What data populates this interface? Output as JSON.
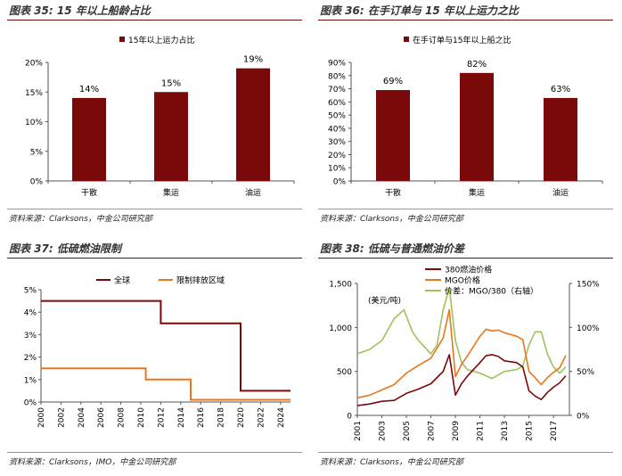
{
  "colors": {
    "bar": "#7a0a0a",
    "accent": "#7a0a0a",
    "line_dark": "#7a0a0a",
    "line_orange": "#e8771e",
    "line_green": "#9dc35b"
  },
  "chart_data": [
    {
      "type": "bar",
      "title": "图表 35: 15 年以上船龄占比",
      "legend": [
        "15年以上运力占比"
      ],
      "categories": [
        "干散",
        "集运",
        "油运"
      ],
      "values": [
        14,
        15,
        19
      ],
      "data_labels": [
        "14%",
        "15%",
        "19%"
      ],
      "yticks": [
        "0%",
        "5%",
        "10%",
        "15%",
        "20%"
      ],
      "ylim": [
        0,
        20
      ],
      "source": "资料来源：Clarksons，中金公司研究部"
    },
    {
      "type": "bar",
      "title": "图表 36: 在手订单与 15 年以上运力之比",
      "legend": [
        "在手订单与15年以上船之比"
      ],
      "categories": [
        "干散",
        "集运",
        "油运"
      ],
      "values": [
        69,
        82,
        63
      ],
      "data_labels": [
        "69%",
        "82%",
        "63%"
      ],
      "yticks": [
        "0%",
        "10%",
        "20%",
        "30%",
        "40%",
        "50%",
        "60%",
        "70%",
        "80%",
        "90%"
      ],
      "ylim": [
        0,
        90
      ],
      "source": "资料来源：Clarksons，中金公司研究部"
    },
    {
      "type": "line",
      "title": "图表 37: 低硫燃油限制",
      "legend": [
        "全球",
        "限制排放区域"
      ],
      "series": [
        {
          "name": "全球",
          "points": [
            [
              2000,
              4.5
            ],
            [
              2012,
              4.5
            ],
            [
              2012,
              3.5
            ],
            [
              2020,
              3.5
            ],
            [
              2020,
              0.5
            ],
            [
              2025,
              0.5
            ]
          ]
        },
        {
          "name": "限制排放区域",
          "points": [
            [
              2000,
              1.5
            ],
            [
              2010.5,
              1.5
            ],
            [
              2010.5,
              1.0
            ],
            [
              2015,
              1.0
            ],
            [
              2015,
              0.1
            ],
            [
              2025,
              0.1
            ]
          ]
        }
      ],
      "xticks": [
        "2000",
        "2002",
        "2004",
        "2006",
        "2008",
        "2010",
        "2012",
        "2014",
        "2016",
        "2018",
        "2020",
        "2022",
        "2024"
      ],
      "yticks": [
        "0%",
        "1%",
        "2%",
        "3%",
        "4%",
        "5%"
      ],
      "xlim": [
        2000,
        2025
      ],
      "ylim": [
        0,
        5
      ],
      "source": "资料来源：Clarksons，IMO，中金公司研究部"
    },
    {
      "type": "line",
      "title": "图表 38: 低硫与普通燃油价差",
      "legend": [
        "380燃油价格",
        "MGO价格",
        "价差：MGO/380（右轴）"
      ],
      "unit_label": "(美元/吨)",
      "series": [
        {
          "name": "380燃油价格",
          "axis": "left",
          "points": [
            [
              2001,
              110
            ],
            [
              2002,
              130
            ],
            [
              2003,
              160
            ],
            [
              2004,
              170
            ],
            [
              2005,
              250
            ],
            [
              2006,
              300
            ],
            [
              2007,
              360
            ],
            [
              2008,
              500
            ],
            [
              2008.5,
              690
            ],
            [
              2009,
              230
            ],
            [
              2009.5,
              360
            ],
            [
              2010,
              450
            ],
            [
              2011,
              600
            ],
            [
              2011.5,
              680
            ],
            [
              2012,
              690
            ],
            [
              2012.5,
              670
            ],
            [
              2013,
              620
            ],
            [
              2014,
              600
            ],
            [
              2014.5,
              550
            ],
            [
              2015,
              280
            ],
            [
              2015.5,
              220
            ],
            [
              2016,
              180
            ],
            [
              2016.5,
              260
            ],
            [
              2017,
              320
            ],
            [
              2017.5,
              370
            ],
            [
              2018,
              450
            ]
          ]
        },
        {
          "name": "MGO价格",
          "axis": "left",
          "points": [
            [
              2001,
              200
            ],
            [
              2002,
              230
            ],
            [
              2003,
              290
            ],
            [
              2004,
              350
            ],
            [
              2005,
              480
            ],
            [
              2006,
              570
            ],
            [
              2007,
              650
            ],
            [
              2008,
              880
            ],
            [
              2008.5,
              1200
            ],
            [
              2009,
              440
            ],
            [
              2009.5,
              580
            ],
            [
              2010,
              680
            ],
            [
              2011,
              900
            ],
            [
              2011.5,
              980
            ],
            [
              2012,
              960
            ],
            [
              2012.5,
              970
            ],
            [
              2013,
              940
            ],
            [
              2014,
              900
            ],
            [
              2014.5,
              860
            ],
            [
              2015,
              500
            ],
            [
              2015.5,
              430
            ],
            [
              2016,
              350
            ],
            [
              2016.5,
              430
            ],
            [
              2017,
              490
            ],
            [
              2017.5,
              540
            ],
            [
              2018,
              680
            ]
          ]
        },
        {
          "name": "价差：MGO/380（右轴）",
          "axis": "right",
          "points": [
            [
              2001,
              70
            ],
            [
              2002,
              75
            ],
            [
              2003,
              85
            ],
            [
              2004,
              110
            ],
            [
              2004.8,
              120
            ],
            [
              2005.5,
              95
            ],
            [
              2006,
              85
            ],
            [
              2007,
              70
            ],
            [
              2007.5,
              80
            ],
            [
              2008,
              120
            ],
            [
              2008.5,
              145
            ],
            [
              2009,
              85
            ],
            [
              2009.5,
              60
            ],
            [
              2010,
              52
            ],
            [
              2011,
              48
            ],
            [
              2012,
              42
            ],
            [
              2013,
              50
            ],
            [
              2014,
              52
            ],
            [
              2014.5,
              56
            ],
            [
              2015,
              80
            ],
            [
              2015.5,
              95
            ],
            [
              2016,
              95
            ],
            [
              2016.5,
              70
            ],
            [
              2017,
              55
            ],
            [
              2017.5,
              48
            ],
            [
              2018,
              55
            ]
          ]
        }
      ],
      "xticks": [
        "2001",
        "2003",
        "2005",
        "2007",
        "2009",
        "2011",
        "2013",
        "2015",
        "2017"
      ],
      "yticks_left": [
        "0",
        "500",
        "1,000",
        "1,500"
      ],
      "yticks_right": [
        "0%",
        "50%",
        "100%",
        "150%"
      ],
      "xlim": [
        2001,
        2018.3
      ],
      "ylim_left": [
        0,
        1500
      ],
      "ylim_right": [
        0,
        150
      ],
      "source": "资料来源：Clarksons，中金公司研究部"
    }
  ]
}
